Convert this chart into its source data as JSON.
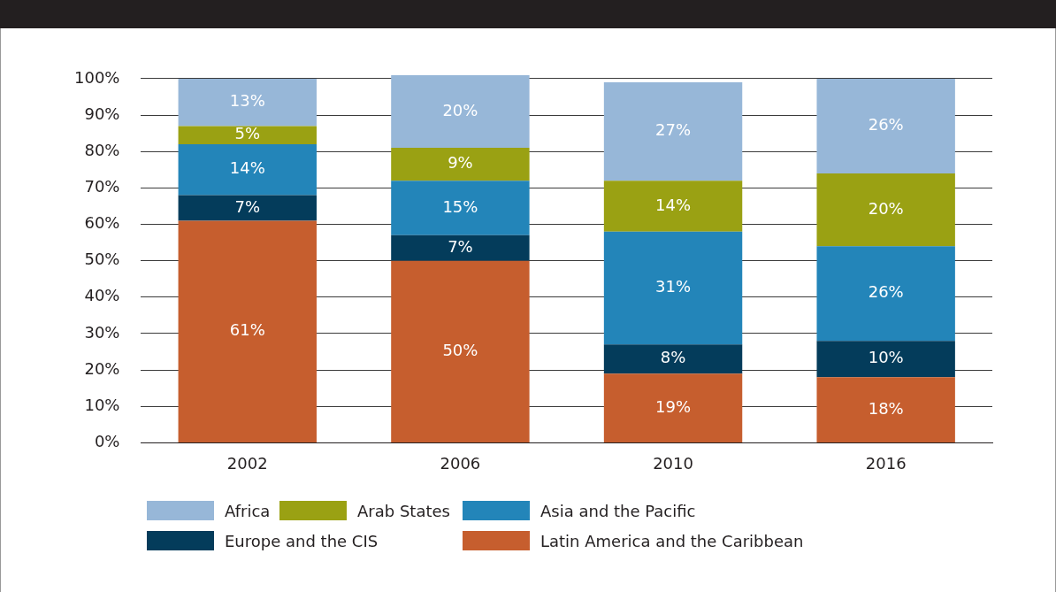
{
  "chart_data": {
    "type": "bar",
    "stacked": true,
    "categories": [
      "2002",
      "2006",
      "2010",
      "2016"
    ],
    "series": [
      {
        "name": "Latin America and the Caribbean",
        "color": "#c65e2e",
        "values": [
          61,
          50,
          19,
          18
        ],
        "value_labels": [
          "61%",
          "50%",
          "19%",
          "18%"
        ]
      },
      {
        "name": "Europe and the CIS",
        "color": "#043c5b",
        "values": [
          7,
          7,
          8,
          10
        ],
        "value_labels": [
          "7%",
          "7%",
          "8%",
          "10%"
        ]
      },
      {
        "name": "Asia and the Pacific",
        "color": "#2385b9",
        "values": [
          14,
          15,
          31,
          26
        ],
        "value_labels": [
          "14%",
          "15%",
          "31%",
          "26%"
        ]
      },
      {
        "name": "Arab States",
        "color": "#9aa113",
        "values": [
          5,
          9,
          14,
          20
        ],
        "value_labels": [
          "5%",
          "9%",
          "14%",
          "20%"
        ]
      },
      {
        "name": "Africa",
        "color": "#97b7d8",
        "values": [
          13,
          20,
          27,
          26
        ],
        "value_labels": [
          "13%",
          "20%",
          "27%",
          "26%"
        ]
      }
    ],
    "ylim": [
      0,
      101
    ],
    "yticks": [
      {
        "value": 0,
        "label": "0%"
      },
      {
        "value": 10,
        "label": "10%"
      },
      {
        "value": 20,
        "label": "20%"
      },
      {
        "value": 30,
        "label": "30%"
      },
      {
        "value": 40,
        "label": "40%"
      },
      {
        "value": 50,
        "label": "50%"
      },
      {
        "value": 60,
        "label": "60%"
      },
      {
        "value": 70,
        "label": "70%"
      },
      {
        "value": 80,
        "label": "80%"
      },
      {
        "value": 90,
        "label": "90%"
      },
      {
        "value": 100,
        "label": "100%"
      }
    ],
    "grid": "y",
    "legend": "bottom"
  }
}
